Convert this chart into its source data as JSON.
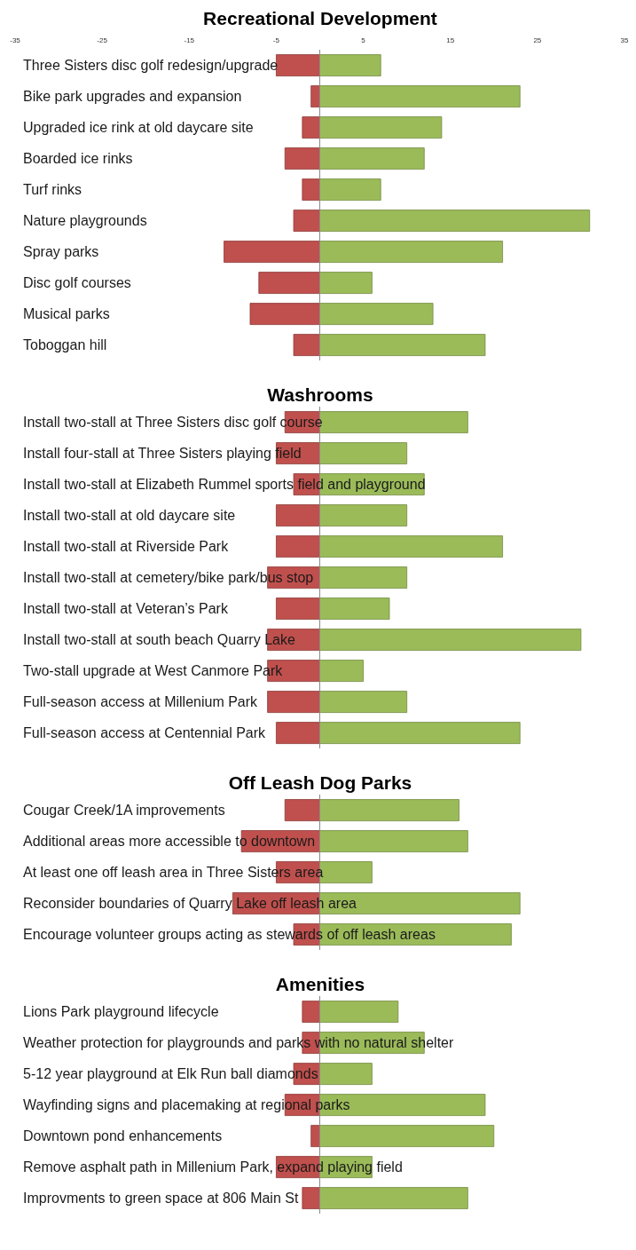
{
  "chart_data": [
    {
      "type": "bar",
      "orientation": "horizontal",
      "stacked": true,
      "title": "Recreational Development",
      "categories": [
        "Three Sisters disc golf redesign/upgrade",
        "Bike park upgrades and expansion",
        "Upgraded ice rink at old daycare site",
        "Boarded ice rinks",
        "Turf rinks",
        "Nature playgrounds",
        "Spray parks",
        "Disc golf courses",
        "Musical parks",
        "Toboggan hill"
      ],
      "series": [
        {
          "color": "#c0504d",
          "values": [
            -5,
            -1,
            -2,
            -4,
            -2,
            -3,
            -11,
            -7,
            -8,
            -3
          ]
        },
        {
          "color": "#9bbb59",
          "values": [
            7,
            23,
            14,
            12,
            7,
            31,
            21,
            6,
            13,
            19
          ]
        }
      ],
      "xlim": [
        -35,
        35
      ],
      "xticks": [
        -35,
        -25,
        -15,
        -5,
        5,
        15,
        25,
        35
      ],
      "grid": false,
      "legend": false
    },
    {
      "type": "bar",
      "orientation": "horizontal",
      "stacked": true,
      "title": "Washrooms",
      "categories": [
        "Install two-stall at Three Sisters disc golf course",
        "Install four-stall at Three Sisters playing field",
        "Install two-stall at Elizabeth Rummel sports field and playground",
        "Install two-stall at old daycare site",
        "Install two-stall at Riverside Park",
        "Install two-stall at cemetery/bike park/bus stop",
        "Install two-stall at Veteran’s Park",
        "Install two-stall at south beach Quarry Lake",
        "Two-stall upgrade at West Canmore Park",
        "Full-season access at Millenium Park",
        "Full-season access at Centennial Park"
      ],
      "series": [
        {
          "color": "#c0504d",
          "values": [
            -4,
            -5,
            -3,
            -5,
            -5,
            -6,
            -5,
            -6,
            -6,
            -6,
            -5
          ]
        },
        {
          "color": "#9bbb59",
          "values": [
            17,
            10,
            12,
            10,
            21,
            10,
            8,
            30,
            5,
            10,
            23
          ]
        }
      ],
      "xlim": [
        -35,
        35
      ],
      "tick_labels": "y",
      "grid": false,
      "legend": false
    },
    {
      "type": "bar",
      "orientation": "horizontal",
      "stacked": true,
      "title": "Off Leash Dog Parks",
      "categories": [
        "Cougar Creek/1A improvements",
        "Additional areas more accessible to downtown",
        "At least one off leash area in Three Sisters area",
        "Reconsider boundaries of Quarry Lake off leash area",
        "Encourage volunteer groups acting as stewards of off leash areas"
      ],
      "series": [
        {
          "color": "#c0504d",
          "values": [
            -4,
            -9,
            -5,
            -10,
            -3
          ]
        },
        {
          "color": "#9bbb59",
          "values": [
            16,
            17,
            6,
            23,
            22
          ]
        }
      ],
      "xlim": [
        -35,
        35
      ],
      "tick_labels": "y",
      "grid": false,
      "legend": false
    },
    {
      "type": "bar",
      "orientation": "horizontal",
      "stacked": true,
      "title": "Amenities",
      "categories": [
        "Lions Park playground lifecycle",
        "Weather protection for playgrounds and parks with no natural shelter",
        "5-12 year playground at Elk Run ball diamonds",
        "Wayfinding signs and placemaking at regional parks",
        "Downtown pond enhancements",
        "Remove asphalt path in Millenium Park, expand playing field",
        "Improvments to green space at 806 Main St"
      ],
      "series": [
        {
          "color": "#c0504d",
          "values": [
            -2,
            -2,
            -3,
            -4,
            -1,
            -5,
            -2
          ]
        },
        {
          "color": "#9bbb59",
          "values": [
            9,
            12,
            6,
            19,
            20,
            6,
            17
          ]
        }
      ],
      "xlim": [
        -35,
        35
      ],
      "tick_labels": "y",
      "grid": false,
      "legend": false
    }
  ]
}
